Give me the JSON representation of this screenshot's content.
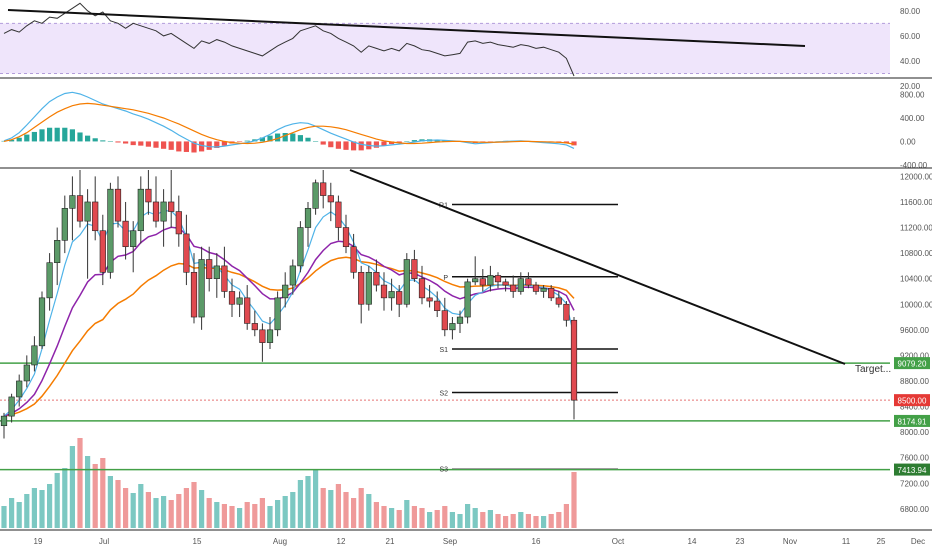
{
  "chart_data": {
    "type": "candlestick",
    "colors": {
      "up": "#5b9a68",
      "down": "#e0494f",
      "vol_up": "#7cc8c2",
      "vol_down": "#ef9a9a",
      "ema_fast": "#4fb3e8",
      "ema_mid": "#8e24aa",
      "ema_slow": "#f57c00",
      "level": "#43a047",
      "rsi_band": "#efe5fb",
      "rsi_line": "#333333",
      "macd": "#4fb3e8",
      "signal": "#f57c00"
    },
    "x_labels": [
      "19",
      "Jul",
      "15",
      "Aug",
      "12",
      "21",
      "Sep",
      "16",
      "Oct",
      "14",
      "23",
      "Nov",
      "11",
      "25",
      "Dec"
    ],
    "price_axis": {
      "min": 6500,
      "max": 12100,
      "ticks": [
        "12000.00",
        "11600.00",
        "11200.00",
        "10800.00",
        "10400.00",
        "10000.00",
        "9600.00",
        "9200.00",
        "8800.00",
        "8400.00",
        "8000.00",
        "7600.00",
        "7200.00",
        "6800.00"
      ]
    },
    "rsi_axis": {
      "min": 28,
      "max": 87,
      "ticks": [
        "80.00",
        "60.00",
        "40.00",
        "20.00"
      ],
      "band": [
        30,
        70
      ]
    },
    "macd_axis": {
      "min": -420,
      "max": 1050,
      "ticks": [
        "800.00",
        "400.00",
        "0.00",
        "-400.00"
      ]
    },
    "levels": [
      {
        "value": 9079.2,
        "label": "9079.20",
        "style": "green-box"
      },
      {
        "value": 8500.0,
        "label": "8500.00",
        "style": "red-box"
      },
      {
        "value": 8174.91,
        "label": "8174.91",
        "style": "green-box"
      },
      {
        "value": 7413.94,
        "label": "7413.94",
        "style": "dark-box"
      }
    ],
    "pivots": [
      {
        "name": "R1",
        "value": 11560
      },
      {
        "name": "P",
        "value": 10430
      },
      {
        "name": "S1",
        "value": 9300
      },
      {
        "name": "S2",
        "value": 8620
      },
      {
        "name": "S3",
        "value": 7430
      }
    ],
    "annotation": "Target...",
    "candles": [
      [
        8100,
        8300,
        7900,
        8250
      ],
      [
        8250,
        8600,
        8150,
        8550
      ],
      [
        8550,
        8900,
        8400,
        8800
      ],
      [
        8800,
        9200,
        8700,
        9050
      ],
      [
        9050,
        9500,
        8950,
        9350
      ],
      [
        9350,
        10200,
        9300,
        10100
      ],
      [
        10100,
        10800,
        9900,
        10650
      ],
      [
        10650,
        11200,
        10300,
        11000
      ],
      [
        11000,
        11700,
        10800,
        11500
      ],
      [
        11500,
        12000,
        11000,
        11700
      ],
      [
        11700,
        12100,
        11200,
        11300
      ],
      [
        11300,
        11800,
        10400,
        11600
      ],
      [
        11600,
        12000,
        11000,
        11150
      ],
      [
        11150,
        11400,
        10300,
        10500
      ],
      [
        10500,
        11900,
        10400,
        11800
      ],
      [
        11800,
        12000,
        11200,
        11300
      ],
      [
        11300,
        11600,
        10700,
        10900
      ],
      [
        10900,
        11300,
        10500,
        11150
      ],
      [
        11150,
        12000,
        10950,
        11800
      ],
      [
        11800,
        12100,
        11400,
        11600
      ],
      [
        11600,
        12000,
        11200,
        11300
      ],
      [
        11300,
        11800,
        10900,
        11600
      ],
      [
        11600,
        12100,
        11200,
        11450
      ],
      [
        11450,
        11700,
        10900,
        11100
      ],
      [
        11100,
        11400,
        10300,
        10500
      ],
      [
        10500,
        10800,
        9700,
        9800
      ],
      [
        9800,
        10900,
        9600,
        10700
      ],
      [
        10700,
        10900,
        10200,
        10400
      ],
      [
        10400,
        10800,
        10100,
        10600
      ],
      [
        10600,
        10900,
        10100,
        10200
      ],
      [
        10200,
        10400,
        9800,
        10000
      ],
      [
        10000,
        10200,
        9800,
        10100
      ],
      [
        10100,
        10300,
        9600,
        9700
      ],
      [
        9700,
        9900,
        9500,
        9600
      ],
      [
        9600,
        9700,
        9100,
        9400
      ],
      [
        9400,
        9800,
        9300,
        9600
      ],
      [
        9600,
        10200,
        9500,
        10100
      ],
      [
        10100,
        10500,
        9950,
        10300
      ],
      [
        10300,
        10700,
        10150,
        10600
      ],
      [
        10600,
        11300,
        10500,
        11200
      ],
      [
        11200,
        11600,
        10900,
        11500
      ],
      [
        11500,
        11950,
        11400,
        11900
      ],
      [
        11900,
        12100,
        11500,
        11700
      ],
      [
        11700,
        11900,
        11300,
        11600
      ],
      [
        11600,
        11700,
        11000,
        11200
      ],
      [
        11200,
        11400,
        10800,
        10900
      ],
      [
        10900,
        11100,
        10400,
        10500
      ],
      [
        10500,
        10600,
        9700,
        10000
      ],
      [
        10000,
        10600,
        9900,
        10500
      ],
      [
        10500,
        10700,
        10200,
        10300
      ],
      [
        10300,
        10500,
        9900,
        10100
      ],
      [
        10100,
        10400,
        9900,
        10200
      ],
      [
        10200,
        10300,
        9800,
        10000
      ],
      [
        10000,
        10800,
        9950,
        10700
      ],
      [
        10700,
        10850,
        10350,
        10400
      ],
      [
        10400,
        10600,
        10000,
        10100
      ],
      [
        10100,
        10300,
        9950,
        10050
      ],
      [
        10050,
        10200,
        9800,
        9900
      ],
      [
        9900,
        10100,
        9500,
        9600
      ],
      [
        9600,
        9800,
        9450,
        9700
      ],
      [
        9700,
        9900,
        9550,
        9800
      ],
      [
        9800,
        10400,
        9700,
        10350
      ],
      [
        10350,
        10750,
        10300,
        10400
      ],
      [
        10400,
        10550,
        10200,
        10300
      ],
      [
        10300,
        10600,
        10200,
        10450
      ],
      [
        10450,
        10500,
        10250,
        10350
      ],
      [
        10350,
        10400,
        10200,
        10300
      ],
      [
        10300,
        10450,
        10100,
        10200
      ],
      [
        10200,
        10500,
        10150,
        10400
      ],
      [
        10400,
        10500,
        10250,
        10300
      ],
      [
        10300,
        10350,
        10150,
        10200
      ],
      [
        10200,
        10300,
        10100,
        10250
      ],
      [
        10250,
        10300,
        10050,
        10100
      ],
      [
        10100,
        10200,
        9950,
        10000
      ],
      [
        10000,
        10050,
        9650,
        9750
      ],
      [
        9750,
        9800,
        8200,
        8500
      ]
    ],
    "volumes": [
      [
        22,
        1
      ],
      [
        30,
        1
      ],
      [
        26,
        1
      ],
      [
        34,
        1
      ],
      [
        40,
        1
      ],
      [
        38,
        1
      ],
      [
        44,
        1
      ],
      [
        55,
        1
      ],
      [
        60,
        1
      ],
      [
        82,
        1
      ],
      [
        90,
        0
      ],
      [
        72,
        1
      ],
      [
        64,
        0
      ],
      [
        70,
        0
      ],
      [
        52,
        1
      ],
      [
        48,
        0
      ],
      [
        40,
        0
      ],
      [
        35,
        1
      ],
      [
        44,
        1
      ],
      [
        36,
        0
      ],
      [
        30,
        1
      ],
      [
        32,
        1
      ],
      [
        28,
        0
      ],
      [
        34,
        0
      ],
      [
        40,
        0
      ],
      [
        46,
        0
      ],
      [
        38,
        1
      ],
      [
        30,
        0
      ],
      [
        26,
        1
      ],
      [
        24,
        0
      ],
      [
        22,
        0
      ],
      [
        20,
        1
      ],
      [
        26,
        0
      ],
      [
        24,
        0
      ],
      [
        30,
        0
      ],
      [
        22,
        1
      ],
      [
        28,
        1
      ],
      [
        32,
        1
      ],
      [
        36,
        1
      ],
      [
        48,
        1
      ],
      [
        52,
        1
      ],
      [
        58,
        1
      ],
      [
        40,
        0
      ],
      [
        38,
        1
      ],
      [
        44,
        0
      ],
      [
        36,
        0
      ],
      [
        30,
        0
      ],
      [
        40,
        0
      ],
      [
        34,
        1
      ],
      [
        26,
        0
      ],
      [
        22,
        0
      ],
      [
        20,
        1
      ],
      [
        18,
        0
      ],
      [
        28,
        1
      ],
      [
        22,
        0
      ],
      [
        20,
        0
      ],
      [
        16,
        1
      ],
      [
        18,
        0
      ],
      [
        22,
        0
      ],
      [
        16,
        1
      ],
      [
        14,
        1
      ],
      [
        24,
        1
      ],
      [
        20,
        1
      ],
      [
        16,
        0
      ],
      [
        18,
        1
      ],
      [
        14,
        0
      ],
      [
        12,
        0
      ],
      [
        14,
        0
      ],
      [
        16,
        1
      ],
      [
        14,
        0
      ],
      [
        12,
        0
      ],
      [
        12,
        1
      ],
      [
        14,
        0
      ],
      [
        16,
        0
      ],
      [
        24,
        0
      ],
      [
        56,
        0
      ]
    ],
    "rsi": [
      62,
      65,
      63,
      68,
      72,
      70,
      75,
      74,
      78,
      82,
      86,
      80,
      76,
      79,
      72,
      70,
      66,
      70,
      68,
      66,
      64,
      60,
      62,
      58,
      54,
      50,
      56,
      54,
      57,
      55,
      52,
      50,
      48,
      46,
      44,
      48,
      52,
      55,
      58,
      64,
      66,
      68,
      64,
      62,
      58,
      55,
      52,
      47,
      52,
      50,
      48,
      50,
      48,
      54,
      52,
      49,
      48,
      46,
      44,
      45,
      46,
      55,
      56,
      54,
      55,
      53,
      52,
      51,
      53,
      52,
      50,
      51,
      49,
      47,
      42,
      28
    ],
    "macd": [
      10,
      60,
      150,
      280,
      420,
      560,
      680,
      760,
      820,
      840,
      810,
      760,
      700,
      640,
      600,
      560,
      520,
      470,
      430,
      380,
      320,
      260,
      190,
      110,
      40,
      -30,
      -70,
      -90,
      -95,
      -80,
      -60,
      -40,
      -20,
      10,
      60,
      120,
      200,
      260,
      300,
      320,
      310,
      260,
      200,
      140,
      90,
      40,
      -10,
      -50,
      -70,
      -80,
      -75,
      -60,
      -45,
      -30,
      -10,
      10,
      20,
      25,
      20,
      10,
      0,
      -20,
      -40,
      -30,
      -20,
      -10,
      0,
      5,
      10,
      0,
      -10,
      -20,
      -30,
      -40,
      -60,
      -120
    ],
    "signal": [
      0,
      30,
      80,
      150,
      240,
      330,
      420,
      500,
      560,
      610,
      640,
      650,
      640,
      620,
      600,
      580,
      560,
      540,
      510,
      480,
      440,
      400,
      350,
      300,
      240,
      180,
      120,
      70,
      30,
      0,
      -20,
      -30,
      -35,
      -30,
      -15,
      10,
      50,
      100,
      150,
      200,
      240,
      260,
      260,
      250,
      230,
      200,
      160,
      120,
      80,
      40,
      10,
      -10,
      -25,
      -35,
      -35,
      -30,
      -20,
      -10,
      -5,
      0,
      0,
      -5,
      -10,
      -15,
      -15,
      -12,
      -10,
      -5,
      0,
      0,
      -3,
      -6,
      -10,
      -15,
      -25,
      -45
    ]
  }
}
